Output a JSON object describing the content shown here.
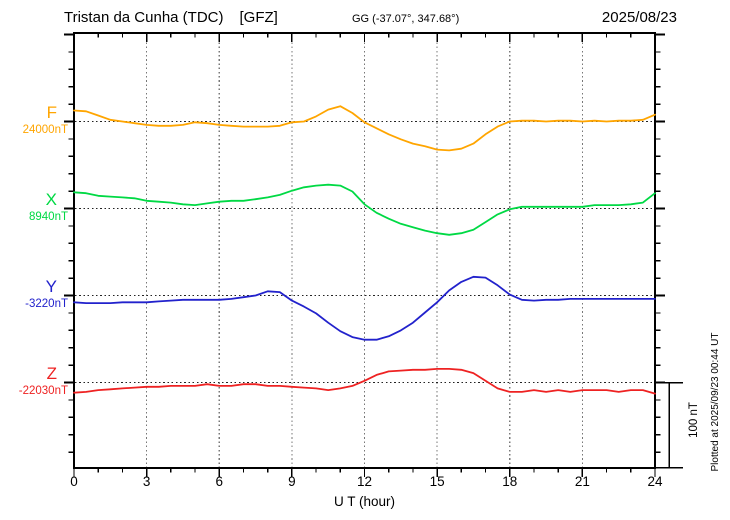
{
  "header": {
    "station_name": "Tristan da Cunha (TDC)",
    "institute": "[GFZ]",
    "coords": "GG (-37.07°, 347.68°)",
    "date": "2025/08/23"
  },
  "x_axis": {
    "label": "U T (hour)",
    "tick_labels": [
      "0",
      "3",
      "6",
      "9",
      "12",
      "15",
      "18",
      "21",
      "24"
    ],
    "tick_hours": [
      0,
      3,
      6,
      9,
      12,
      15,
      18,
      21,
      24
    ],
    "grid_hours": [
      3,
      6,
      9,
      12,
      15,
      18,
      21
    ]
  },
  "scale_bar": {
    "label": "100 nT",
    "span_nT": 100
  },
  "side_note": "Plotted at 2025/09/23 00:44 UT",
  "chart_data": {
    "type": "line",
    "title": "Tristan da Cunha (TDC) [GFZ] 2025/08/23",
    "xlabel": "U T (hour)",
    "xlim": [
      0,
      24
    ],
    "grid": "dotted vertical gridlines every 3 hours; dotted horizontal baseline per component",
    "legend_position": "left-of-traces",
    "x_hours": [
      0,
      0.5,
      1,
      1.5,
      2,
      2.5,
      3,
      3.5,
      4,
      4.5,
      5,
      5.5,
      6,
      6.5,
      7,
      7.5,
      8,
      8.5,
      9,
      9.5,
      10,
      10.5,
      11,
      11.5,
      12,
      12.5,
      13,
      13.5,
      14,
      14.5,
      15,
      15.5,
      16,
      16.5,
      17,
      17.5,
      18,
      18.5,
      19,
      19.5,
      20,
      20.5,
      21,
      21.5,
      22,
      22.5,
      23,
      23.5,
      24
    ],
    "series": [
      {
        "name": "F",
        "baseline_label": "24000nT",
        "baseline_nT": 24000,
        "color": "#FFA500",
        "offsets_nT": [
          13,
          12,
          7,
          2,
          0,
          -2,
          -4,
          -5,
          -5,
          -4,
          -1,
          -2,
          -4,
          -5,
          -6,
          -6,
          -6,
          -5,
          -1,
          0,
          6,
          14,
          18,
          10,
          -1,
          -8,
          -15,
          -21,
          -26,
          -29,
          -33,
          -34,
          -32,
          -26,
          -15,
          -6,
          0,
          1,
          1,
          0,
          1,
          1,
          0,
          1,
          0,
          1,
          1,
          2,
          8
        ]
      },
      {
        "name": "X",
        "baseline_label": "8940nT",
        "baseline_nT": 8940,
        "color": "#00D944",
        "offsets_nT": [
          19,
          18,
          15,
          14,
          13,
          12,
          9,
          8,
          7,
          5,
          4,
          6,
          8,
          9,
          9,
          11,
          13,
          16,
          21,
          25,
          27,
          28,
          27,
          20,
          5,
          -5,
          -12,
          -18,
          -22,
          -26,
          -29,
          -31,
          -29,
          -25,
          -16,
          -7,
          -1,
          2,
          2,
          2,
          2,
          2,
          2,
          4,
          4,
          4,
          5,
          7,
          18
        ]
      },
      {
        "name": "Y",
        "baseline_label": "-3220nT",
        "baseline_nT": -3220,
        "color": "#2222CC",
        "offsets_nT": [
          -8,
          -9,
          -9,
          -9,
          -8,
          -8,
          -8,
          -7,
          -6,
          -5,
          -5,
          -5,
          -5,
          -4,
          -2,
          0,
          5,
          4,
          -6,
          -13,
          -21,
          -32,
          -42,
          -49,
          -52,
          -52,
          -48,
          -41,
          -32,
          -20,
          -8,
          6,
          16,
          22,
          21,
          12,
          1,
          -5,
          -6,
          -5,
          -5,
          -4,
          -4,
          -4,
          -4,
          -4,
          -4,
          -4,
          -4
        ]
      },
      {
        "name": "Z",
        "baseline_label": "-22030nT",
        "baseline_nT": -22030,
        "color": "#EE2222",
        "offsets_nT": [
          -12,
          -11,
          -9,
          -8,
          -7,
          -6,
          -5,
          -5,
          -4,
          -4,
          -4,
          -2,
          -4,
          -4,
          -2,
          -2,
          -4,
          -4,
          -5,
          -6,
          -7,
          -9,
          -7,
          -4,
          2,
          9,
          13,
          14,
          15,
          15,
          16,
          16,
          15,
          11,
          2,
          -7,
          -11,
          -11,
          -9,
          -11,
          -9,
          -11,
          -9,
          -9,
          -9,
          -11,
          -9,
          -9,
          -13
        ]
      }
    ]
  }
}
